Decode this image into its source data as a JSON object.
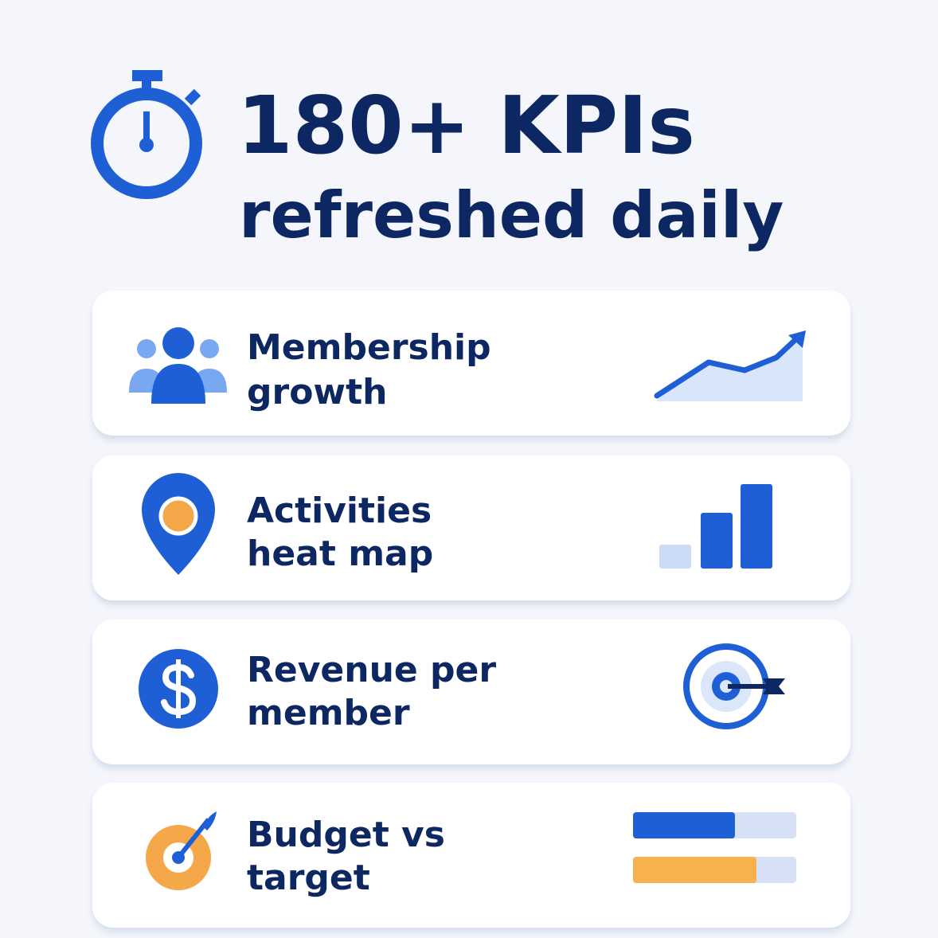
{
  "header": {
    "title": "180+ KPIs",
    "subtitle": "refreshed daily"
  },
  "cards": [
    {
      "lines": [
        "Membership",
        "growth"
      ]
    },
    {
      "lines": [
        "Activities",
        "heat map"
      ]
    },
    {
      "lines": [
        "Revenue per",
        "member"
      ]
    },
    {
      "lines": [
        "Budget vs",
        "target"
      ]
    }
  ]
}
